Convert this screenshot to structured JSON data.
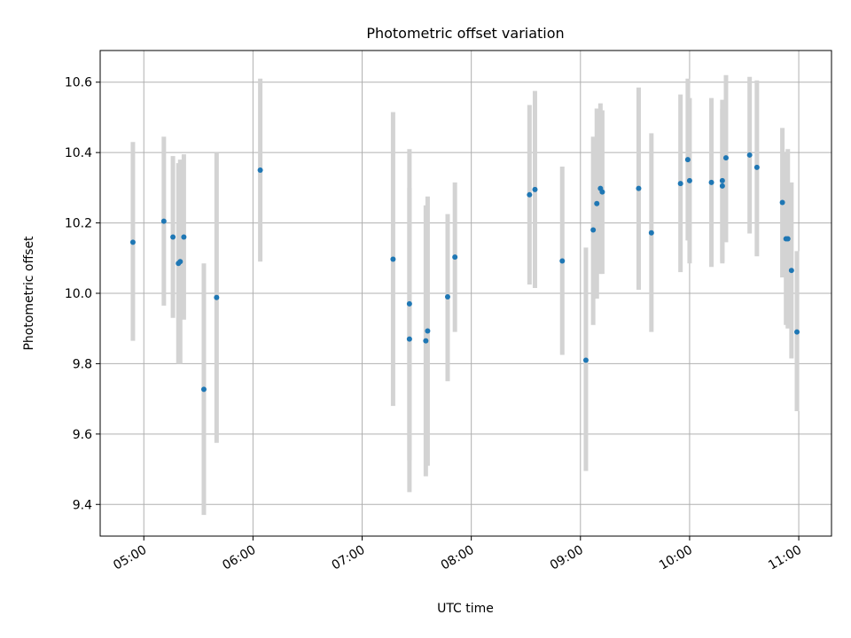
{
  "chart_data": {
    "type": "scatter",
    "title": "Photometric offset variation",
    "xlabel": "UTC time",
    "ylabel": "Photometric offset",
    "x_ticks": [
      "05:00",
      "06:00",
      "07:00",
      "08:00",
      "09:00",
      "10:00",
      "11:00"
    ],
    "y_ticks": [
      "9.4",
      "9.6",
      "9.8",
      "10.0",
      "10.2",
      "10.4",
      "10.6"
    ],
    "xlim": [
      "04:36",
      "11:18"
    ],
    "ylim": [
      9.31,
      10.69
    ],
    "grid": true,
    "colors": {
      "point": "#1f77b4",
      "errorbar": "#d3d3d3",
      "grid": "#b0b0b0"
    },
    "points": [
      {
        "t": "04:54",
        "y": 10.145,
        "lo": 9.865,
        "hi": 10.43
      },
      {
        "t": "05:11",
        "y": 10.205,
        "lo": 9.965,
        "hi": 10.445
      },
      {
        "t": "05:16",
        "y": 10.16,
        "lo": 9.93,
        "hi": 10.39
      },
      {
        "t": "05:19",
        "y": 10.085,
        "lo": 9.8,
        "hi": 10.37
      },
      {
        "t": "05:20",
        "y": 10.09,
        "lo": 9.8,
        "hi": 10.38
      },
      {
        "t": "05:22",
        "y": 10.16,
        "lo": 9.925,
        "hi": 10.395
      },
      {
        "t": "05:33",
        "y": 9.727,
        "lo": 9.37,
        "hi": 10.085
      },
      {
        "t": "05:40",
        "y": 9.988,
        "lo": 9.575,
        "hi": 10.4
      },
      {
        "t": "06:04",
        "y": 10.35,
        "lo": 10.09,
        "hi": 10.61
      },
      {
        "t": "07:17",
        "y": 10.097,
        "lo": 9.68,
        "hi": 10.515
      },
      {
        "t": "07:26",
        "y": 9.87,
        "lo": 9.525,
        "hi": 10.3
      },
      {
        "t": "07:26",
        "y": 9.97,
        "lo": 9.435,
        "hi": 10.41
      },
      {
        "t": "07:35",
        "y": 9.865,
        "lo": 9.48,
        "hi": 10.25
      },
      {
        "t": "07:36",
        "y": 9.893,
        "lo": 9.51,
        "hi": 10.275
      },
      {
        "t": "07:47",
        "y": 9.99,
        "lo": 9.75,
        "hi": 10.225
      },
      {
        "t": "07:51",
        "y": 10.103,
        "lo": 9.89,
        "hi": 10.315
      },
      {
        "t": "08:32",
        "y": 10.28,
        "lo": 10.025,
        "hi": 10.535
      },
      {
        "t": "08:35",
        "y": 10.295,
        "lo": 10.015,
        "hi": 10.575
      },
      {
        "t": "08:50",
        "y": 10.092,
        "lo": 9.825,
        "hi": 10.36
      },
      {
        "t": "09:03",
        "y": 9.81,
        "lo": 9.495,
        "hi": 10.13
      },
      {
        "t": "09:07",
        "y": 10.18,
        "lo": 9.91,
        "hi": 10.445
      },
      {
        "t": "09:09",
        "y": 10.255,
        "lo": 9.985,
        "hi": 10.525
      },
      {
        "t": "09:11",
        "y": 10.298,
        "lo": 10.055,
        "hi": 10.54
      },
      {
        "t": "09:12",
        "y": 10.288,
        "lo": 10.055,
        "hi": 10.52
      },
      {
        "t": "09:32",
        "y": 10.298,
        "lo": 10.01,
        "hi": 10.585
      },
      {
        "t": "09:39",
        "y": 10.172,
        "lo": 9.89,
        "hi": 10.455
      },
      {
        "t": "09:55",
        "y": 10.312,
        "lo": 10.06,
        "hi": 10.565
      },
      {
        "t": "09:59",
        "y": 10.38,
        "lo": 10.15,
        "hi": 10.61
      },
      {
        "t": "10:00",
        "y": 10.32,
        "lo": 10.085,
        "hi": 10.555
      },
      {
        "t": "10:12",
        "y": 10.315,
        "lo": 10.075,
        "hi": 10.555
      },
      {
        "t": "10:18",
        "y": 10.305,
        "lo": 10.085,
        "hi": 10.525
      },
      {
        "t": "10:18",
        "y": 10.32,
        "lo": 10.09,
        "hi": 10.55
      },
      {
        "t": "10:20",
        "y": 10.385,
        "lo": 10.145,
        "hi": 10.62
      },
      {
        "t": "10:33",
        "y": 10.393,
        "lo": 10.17,
        "hi": 10.615
      },
      {
        "t": "10:37",
        "y": 10.358,
        "lo": 10.105,
        "hi": 10.605
      },
      {
        "t": "10:51",
        "y": 10.258,
        "lo": 10.045,
        "hi": 10.47
      },
      {
        "t": "10:53",
        "y": 10.155,
        "lo": 9.91,
        "hi": 10.4
      },
      {
        "t": "10:54",
        "y": 10.155,
        "lo": 9.9,
        "hi": 10.41
      },
      {
        "t": "10:56",
        "y": 10.065,
        "lo": 9.815,
        "hi": 10.315
      },
      {
        "t": "10:59",
        "y": 9.89,
        "lo": 9.665,
        "hi": 10.12
      }
    ]
  }
}
